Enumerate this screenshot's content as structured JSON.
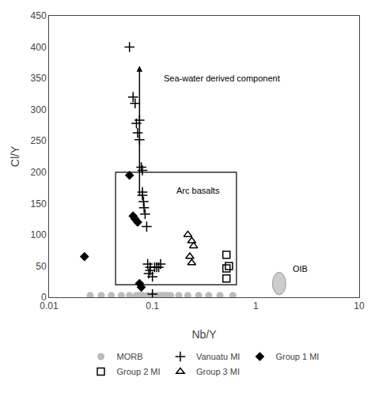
{
  "chart_data": {
    "type": "scatter",
    "xlabel": "Nb/Y",
    "ylabel": "Cl/Y",
    "log": "x",
    "xlim": [
      0.01,
      10
    ],
    "ylim": [
      0,
      450
    ],
    "xticks": [
      0.01,
      0.1,
      1,
      10
    ],
    "yticks": [
      0,
      50,
      100,
      150,
      200,
      250,
      300,
      350,
      400,
      450
    ],
    "grid": false,
    "legend": "bottom",
    "series": [
      {
        "name": "MORB",
        "color": "#bbbbbb",
        "marker": "circle",
        "x": [
          0.025,
          0.032,
          0.04,
          0.05,
          0.06,
          0.07,
          0.075,
          0.08,
          0.09,
          0.1,
          0.11,
          0.12,
          0.13,
          0.14,
          0.15,
          0.18,
          0.22,
          0.28,
          0.35,
          0.45,
          0.6
        ],
        "values": [
          3,
          3,
          3,
          3,
          3,
          3,
          3,
          3,
          3,
          3,
          3,
          3,
          3,
          3,
          3,
          3,
          3,
          3,
          3,
          3,
          3
        ]
      },
      {
        "name": "Vanuatu MI",
        "color": "#000000",
        "marker": "cross-thin",
        "x": [
          0.06,
          0.065,
          0.068,
          0.07,
          0.072,
          0.075,
          0.075,
          0.078,
          0.08,
          0.08,
          0.082,
          0.083,
          0.085,
          0.088,
          0.09,
          0.092,
          0.095,
          0.095,
          0.1,
          0.1,
          0.105,
          0.11,
          0.115,
          0.12,
          0.08
        ],
        "values": [
          400,
          320,
          310,
          278,
          263,
          283,
          252,
          208,
          203,
          163,
          153,
          143,
          133,
          113,
          53,
          38,
          48,
          43,
          5,
          33,
          48,
          48,
          48,
          53,
          168
        ]
      },
      {
        "name": "Group 1 MI",
        "color": "#000000",
        "marker": "diamond",
        "x": [
          0.022,
          0.06,
          0.065,
          0.068,
          0.072,
          0.075,
          0.078
        ],
        "values": [
          65,
          195,
          130,
          125,
          120,
          22,
          16
        ]
      },
      {
        "name": "Group 2 MI",
        "color": "#000000",
        "marker": "square-open",
        "x": [
          0.52,
          0.55,
          0.52,
          0.52
        ],
        "values": [
          68,
          50,
          46,
          30
        ]
      },
      {
        "name": "Group 3 MI",
        "color": "#000000",
        "marker": "triangle-up-open",
        "x": [
          0.22,
          0.24,
          0.25,
          0.23,
          0.24
        ],
        "values": [
          100,
          90,
          82,
          65,
          55
        ]
      }
    ],
    "regions": [
      {
        "shape": "rect",
        "x": [
          0.044,
          0.65
        ],
        "y": [
          20,
          200
        ],
        "color": "#000000"
      },
      {
        "shape": "ellipse",
        "x": [
          1.45,
          1.95
        ],
        "y": [
          4,
          40
        ],
        "color": "#cccccc",
        "edge_color": "#999999"
      }
    ],
    "arrows": [
      {
        "x": 0.075,
        "y_start": 160,
        "y_end": 370,
        "color": "#000000"
      }
    ],
    "annotations": [
      {
        "text": "Sea-water derived component",
        "x": 0.125,
        "y": 340
      },
      {
        "text": "Arc basalts",
        "x": 0.165,
        "y": 160
      },
      {
        "text": "OIB",
        "x": 2.2,
        "y": 36
      }
    ]
  }
}
